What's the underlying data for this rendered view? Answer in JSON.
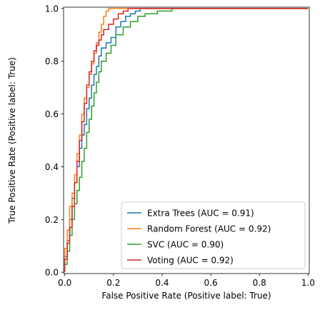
{
  "chart_data": {
    "type": "line",
    "xlabel": "False Positive Rate (Positive label: True)",
    "ylabel": "True Positive Rate (Positive label: True)",
    "xlim": [
      -0.005,
      1.005
    ],
    "ylim": [
      -0.005,
      1.005
    ],
    "x_ticks": [
      "0.0",
      "0.2",
      "0.4",
      "0.6",
      "0.8",
      "1.0"
    ],
    "y_ticks": [
      "0.0",
      "0.2",
      "0.4",
      "0.6",
      "0.8",
      "1.0"
    ],
    "grid": false,
    "legend_position": "lower-right",
    "series": [
      {
        "name": "Extra Trees (AUC = 0.91)",
        "color": "#1f77b4",
        "x": [
          0.0,
          0.0,
          0.01,
          0.01,
          0.02,
          0.02,
          0.03,
          0.03,
          0.04,
          0.04,
          0.05,
          0.05,
          0.06,
          0.06,
          0.07,
          0.07,
          0.08,
          0.08,
          0.09,
          0.09,
          0.1,
          0.1,
          0.11,
          0.11,
          0.12,
          0.12,
          0.13,
          0.13,
          0.14,
          0.14,
          0.15,
          0.15,
          0.17,
          0.17,
          0.19,
          0.19,
          0.21,
          0.21,
          0.23,
          0.23,
          0.25,
          0.25,
          0.27,
          0.27,
          0.29,
          0.29,
          0.31,
          0.31,
          1.0
        ],
        "y": [
          0.0,
          0.06,
          0.06,
          0.12,
          0.12,
          0.2,
          0.2,
          0.28,
          0.28,
          0.34,
          0.34,
          0.4,
          0.4,
          0.47,
          0.47,
          0.52,
          0.52,
          0.56,
          0.56,
          0.62,
          0.62,
          0.66,
          0.66,
          0.71,
          0.71,
          0.75,
          0.75,
          0.78,
          0.78,
          0.82,
          0.82,
          0.85,
          0.85,
          0.87,
          0.87,
          0.89,
          0.89,
          0.93,
          0.93,
          0.95,
          0.95,
          0.97,
          0.97,
          0.98,
          0.98,
          0.99,
          0.99,
          1.0,
          1.0
        ]
      },
      {
        "name": "Random Forest (AUC = 0.92)",
        "color": "#ff7f0e",
        "x": [
          0.0,
          0.0,
          0.01,
          0.01,
          0.02,
          0.02,
          0.03,
          0.03,
          0.04,
          0.04,
          0.05,
          0.05,
          0.06,
          0.06,
          0.07,
          0.07,
          0.08,
          0.08,
          0.09,
          0.09,
          0.1,
          0.1,
          0.11,
          0.11,
          0.12,
          0.12,
          0.13,
          0.13,
          0.14,
          0.14,
          0.15,
          0.15,
          0.16,
          0.16,
          0.17,
          0.17,
          0.18,
          0.18,
          1.0
        ],
        "y": [
          0.0,
          0.09,
          0.09,
          0.16,
          0.16,
          0.25,
          0.25,
          0.3,
          0.3,
          0.37,
          0.37,
          0.45,
          0.45,
          0.52,
          0.52,
          0.6,
          0.6,
          0.66,
          0.66,
          0.7,
          0.7,
          0.75,
          0.75,
          0.79,
          0.79,
          0.83,
          0.83,
          0.87,
          0.87,
          0.91,
          0.91,
          0.94,
          0.94,
          0.97,
          0.97,
          0.99,
          0.99,
          1.0,
          1.0
        ]
      },
      {
        "name": "SVC (AUC = 0.90)",
        "color": "#2ca02c",
        "x": [
          0.0,
          0.0,
          0.01,
          0.01,
          0.02,
          0.02,
          0.03,
          0.03,
          0.04,
          0.04,
          0.05,
          0.05,
          0.06,
          0.06,
          0.07,
          0.07,
          0.08,
          0.08,
          0.09,
          0.09,
          0.1,
          0.1,
          0.11,
          0.11,
          0.12,
          0.12,
          0.13,
          0.13,
          0.14,
          0.14,
          0.15,
          0.15,
          0.17,
          0.17,
          0.19,
          0.19,
          0.21,
          0.21,
          0.24,
          0.24,
          0.27,
          0.27,
          0.3,
          0.3,
          0.33,
          0.33,
          0.38,
          0.38,
          0.44,
          0.44,
          1.0
        ],
        "y": [
          0.0,
          0.03,
          0.03,
          0.08,
          0.08,
          0.14,
          0.14,
          0.2,
          0.2,
          0.26,
          0.26,
          0.31,
          0.31,
          0.36,
          0.36,
          0.42,
          0.42,
          0.47,
          0.47,
          0.53,
          0.53,
          0.58,
          0.58,
          0.63,
          0.63,
          0.68,
          0.68,
          0.72,
          0.72,
          0.76,
          0.76,
          0.8,
          0.8,
          0.83,
          0.83,
          0.86,
          0.86,
          0.9,
          0.9,
          0.93,
          0.93,
          0.95,
          0.95,
          0.97,
          0.97,
          0.98,
          0.98,
          0.99,
          0.99,
          1.0,
          1.0
        ]
      },
      {
        "name": "Voting (AUC = 0.92)",
        "color": "#d62728",
        "x": [
          0.0,
          0.0,
          0.01,
          0.01,
          0.02,
          0.02,
          0.03,
          0.03,
          0.04,
          0.04,
          0.05,
          0.05,
          0.06,
          0.06,
          0.07,
          0.07,
          0.08,
          0.08,
          0.09,
          0.09,
          0.1,
          0.1,
          0.11,
          0.11,
          0.12,
          0.12,
          0.13,
          0.13,
          0.14,
          0.14,
          0.15,
          0.15,
          0.16,
          0.16,
          0.18,
          0.18,
          0.2,
          0.2,
          0.22,
          0.22,
          0.24,
          0.24,
          0.26,
          0.26,
          1.0
        ],
        "y": [
          0.0,
          0.05,
          0.05,
          0.11,
          0.11,
          0.17,
          0.17,
          0.25,
          0.25,
          0.34,
          0.34,
          0.42,
          0.42,
          0.5,
          0.5,
          0.57,
          0.57,
          0.64,
          0.64,
          0.71,
          0.71,
          0.76,
          0.76,
          0.8,
          0.8,
          0.84,
          0.84,
          0.86,
          0.86,
          0.88,
          0.88,
          0.9,
          0.9,
          0.92,
          0.92,
          0.94,
          0.94,
          0.96,
          0.96,
          0.98,
          0.98,
          0.99,
          0.99,
          1.0,
          1.0
        ]
      }
    ]
  }
}
